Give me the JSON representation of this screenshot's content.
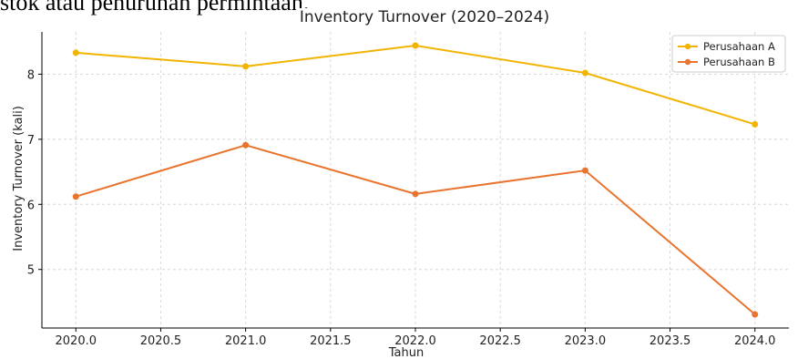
{
  "document": {
    "text_above": "stok atau penurunan permintaan."
  },
  "chart_data": {
    "type": "line",
    "title": "Inventory Turnover (2020–2024)",
    "xlabel": "Tahun",
    "ylabel": "Inventory Turnover (kali)",
    "x": [
      2020,
      2021,
      2022,
      2023,
      2024
    ],
    "xlim": [
      2019.8,
      2024.2
    ],
    "ylim": [
      4.1,
      8.65
    ],
    "xticks": [
      "2020.0",
      "2020.5",
      "2021.0",
      "2021.5",
      "2022.0",
      "2022.5",
      "2023.0",
      "2023.5",
      "2024.0"
    ],
    "yticks": [
      "5",
      "6",
      "7",
      "8"
    ],
    "grid": true,
    "legend_position": "top-right",
    "series": [
      {
        "name": "Perusahaan A",
        "color": "#f2b400",
        "values": [
          8.33,
          8.12,
          8.44,
          8.02,
          7.23
        ]
      },
      {
        "name": "Perusahaan B",
        "color": "#e8742e",
        "values": [
          6.12,
          6.91,
          6.16,
          6.52,
          4.31
        ]
      }
    ]
  }
}
